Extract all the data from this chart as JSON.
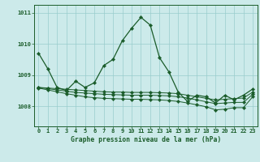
{
  "title": "Graphe pression niveau de la mer (hPa)",
  "background_color": "#cceaea",
  "grid_color": "#99cccc",
  "line_color": "#1a5c2a",
  "xlim": [
    -0.5,
    23.5
  ],
  "ylim": [
    1007.35,
    1011.25
  ],
  "yticks": [
    1008,
    1009,
    1010,
    1011
  ],
  "xticks": [
    0,
    1,
    2,
    3,
    4,
    5,
    6,
    7,
    8,
    9,
    10,
    11,
    12,
    13,
    14,
    15,
    16,
    17,
    18,
    19,
    20,
    21,
    22,
    23
  ],
  "series1": [
    1009.7,
    1009.2,
    1008.6,
    1008.5,
    1008.8,
    1008.6,
    1008.75,
    1009.3,
    1009.5,
    1010.1,
    1010.5,
    1010.85,
    1010.6,
    1009.55,
    1009.1,
    1008.45,
    1008.15,
    1008.35,
    1008.3,
    1008.1,
    1008.35,
    1008.2,
    1008.35,
    1008.55
  ],
  "series2": [
    1008.6,
    1008.58,
    1008.56,
    1008.54,
    1008.52,
    1008.5,
    1008.48,
    1008.46,
    1008.45,
    1008.45,
    1008.44,
    1008.44,
    1008.44,
    1008.43,
    1008.42,
    1008.4,
    1008.35,
    1008.3,
    1008.25,
    1008.2,
    1008.22,
    1008.24,
    1008.26,
    1008.45
  ],
  "series3": [
    1008.6,
    1008.56,
    1008.52,
    1008.48,
    1008.44,
    1008.42,
    1008.4,
    1008.38,
    1008.37,
    1008.36,
    1008.35,
    1008.35,
    1008.35,
    1008.34,
    1008.33,
    1008.3,
    1008.26,
    1008.2,
    1008.14,
    1008.08,
    1008.1,
    1008.12,
    1008.12,
    1008.38
  ],
  "series4": [
    1008.58,
    1008.52,
    1008.46,
    1008.4,
    1008.35,
    1008.3,
    1008.27,
    1008.25,
    1008.24,
    1008.23,
    1008.22,
    1008.22,
    1008.21,
    1008.2,
    1008.18,
    1008.15,
    1008.1,
    1008.04,
    1007.98,
    1007.88,
    1007.9,
    1007.95,
    1007.95,
    1008.3
  ]
}
